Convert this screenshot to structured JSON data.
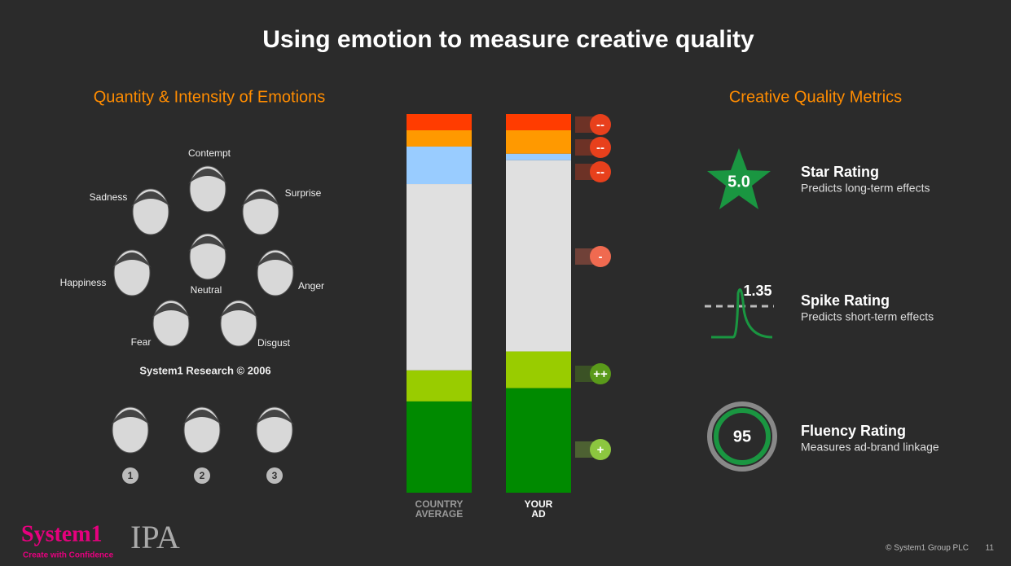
{
  "title": "Using emotion to measure creative quality",
  "left": {
    "heading": "Quantity & Intensity of Emotions",
    "faces": [
      "Contempt",
      "Sadness",
      "Surprise",
      "Happiness",
      "Neutral",
      "Anger",
      "Fear",
      "Disgust"
    ],
    "credit": "System1 Research © 2006",
    "scale": [
      "1",
      "2",
      "3"
    ]
  },
  "bars": {
    "colors": [
      "#ff3c00",
      "#ff9900",
      "#99ccff",
      "#e0e0e0",
      "#99cc00",
      "#008a00"
    ],
    "columns": [
      {
        "label": "COUNTRY AVERAGE",
        "values": [
          4.3,
          4.3,
          9.9,
          49.2,
          8.2,
          24.1
        ]
      },
      {
        "label": "YOUR AD",
        "values": [
          4.3,
          6.2,
          1.7,
          50.5,
          9.7,
          27.6
        ]
      }
    ],
    "indicators": [
      "--",
      "--",
      "--",
      "-",
      "++",
      "+"
    ]
  },
  "right": {
    "heading": "Creative Quality Metrics",
    "metrics": [
      {
        "value": "5.0",
        "title": "Star Rating",
        "subtitle": "Predicts long-term effects"
      },
      {
        "value": 1.35,
        "title": "Spike Rating",
        "subtitle": "Predicts short-term effects"
      },
      {
        "value": 95,
        "title": "Fluency Rating",
        "subtitle": "Measures ad-brand linkage"
      }
    ]
  },
  "footer": {
    "logo": "System1",
    "tagline": "Create with Confidence",
    "partner": "IPA",
    "copyright": "© System1 Group PLC",
    "page": 11
  }
}
